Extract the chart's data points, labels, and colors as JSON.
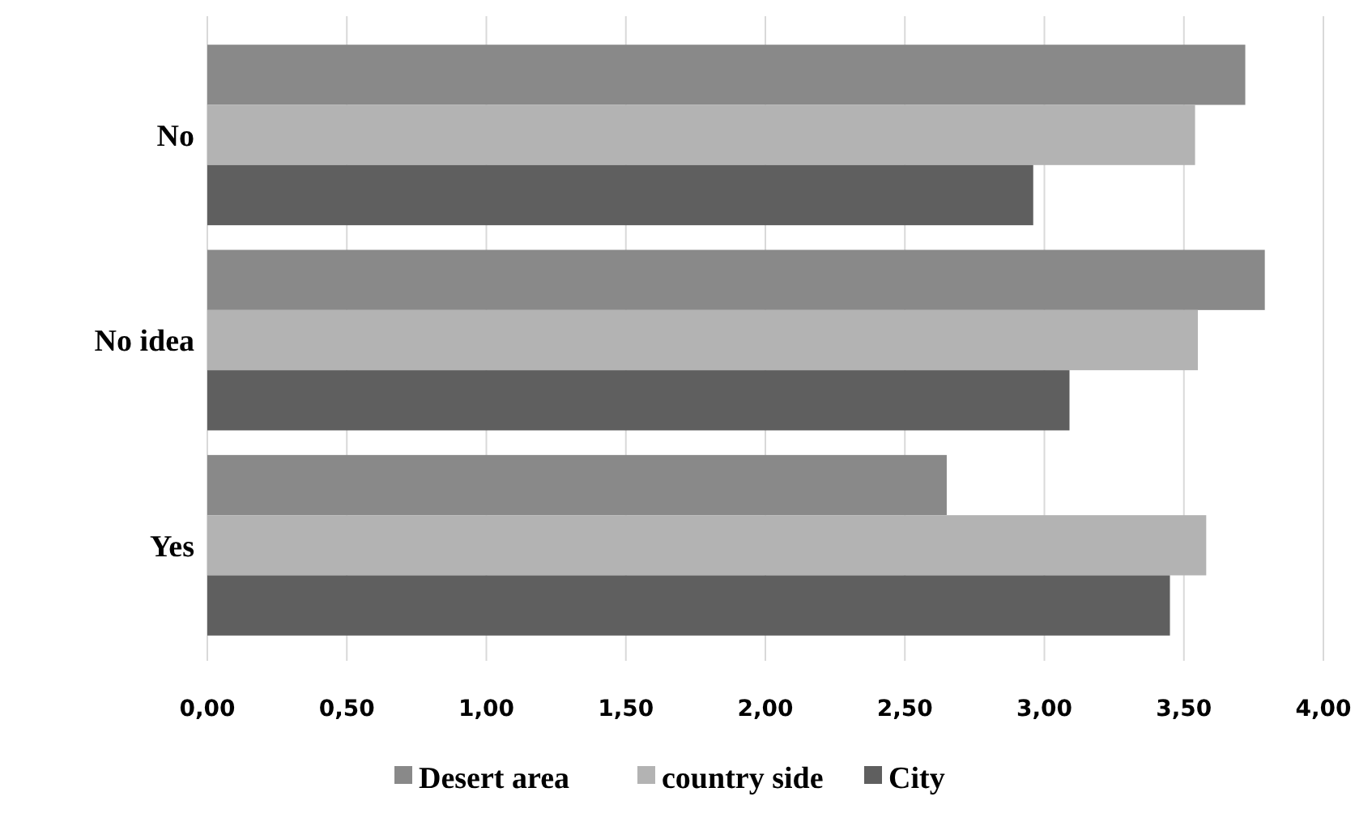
{
  "chart_data": {
    "type": "bar",
    "orientation": "horizontal",
    "categories": [
      "No",
      "No idea",
      "Yes"
    ],
    "series": [
      {
        "name": "Desert area",
        "color": "#898989",
        "values": [
          3.72,
          3.79,
          2.65
        ]
      },
      {
        "name": "country side",
        "color": "#b3b3b3",
        "values": [
          3.54,
          3.55,
          3.58
        ]
      },
      {
        "name": "City",
        "color": "#5f5f5f",
        "values": [
          2.96,
          3.09,
          3.45
        ]
      }
    ],
    "xlim": [
      0,
      4
    ],
    "xticks": [
      {
        "value": 0,
        "label": "0,00"
      },
      {
        "value": 0.5,
        "label": "0,50"
      },
      {
        "value": 1,
        "label": "1,00"
      },
      {
        "value": 1.5,
        "label": "1,50"
      },
      {
        "value": 2,
        "label": "2,00"
      },
      {
        "value": 2.5,
        "label": "2,50"
      },
      {
        "value": 3,
        "label": "3,00"
      },
      {
        "value": 3.5,
        "label": "3,50"
      },
      {
        "value": 4,
        "label": "4,00"
      }
    ],
    "grid": "x",
    "legend": "bottom"
  }
}
